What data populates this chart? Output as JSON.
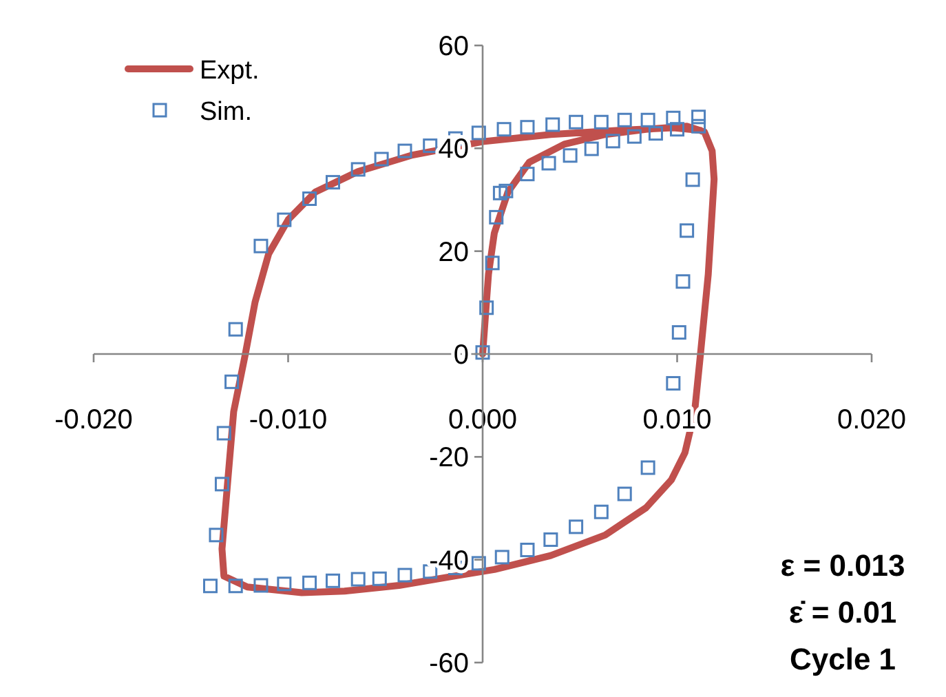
{
  "chart_data": {
    "type": "line",
    "xlim": [
      -0.02,
      0.02
    ],
    "ylim": [
      -60,
      60
    ],
    "xticks": [
      {
        "value": -0.02,
        "label": "-0.020"
      },
      {
        "value": -0.01,
        "label": "-0.010"
      },
      {
        "value": 0,
        "label": "0.000"
      },
      {
        "value": 0.01,
        "label": "0.010"
      },
      {
        "value": 0.02,
        "label": "0.020"
      }
    ],
    "yticks": [
      -60,
      -40,
      -20,
      0,
      20,
      40,
      60
    ],
    "grid": false,
    "legend": "top left",
    "annotations": [
      "ε = 0.013",
      "ε̇ = 0.01",
      "Cycle 1"
    ],
    "series": [
      {
        "name": "Expt.",
        "color": "#c0504d",
        "marker": "none",
        "line_style": "solid",
        "x": [
          0,
          0.0003,
          0.0006,
          0.0013,
          0.0024,
          0.0042,
          0.0063,
          0.0084,
          0.0105,
          0.0114,
          0.0118,
          0.0119,
          0.0116,
          0.0112,
          0.0109,
          0.0104,
          0.0097,
          0.0084,
          0.0063,
          0.0035,
          0.0006,
          -0.0015,
          -0.0043,
          -0.0071,
          -0.0093,
          -0.0121,
          -0.0133,
          -0.0134,
          -0.0131,
          -0.0128,
          -0.0122,
          -0.0117,
          -0.011,
          -0.01,
          -0.0086,
          -0.0064,
          -0.0036,
          0,
          0.0035,
          0.007,
          0.0098,
          0.0112
        ],
        "values": [
          0,
          15.5,
          23.5,
          31.5,
          37.3,
          40.8,
          42.7,
          43.7,
          44.3,
          43.2,
          39.5,
          34,
          15.5,
          0,
          -11.2,
          -19.2,
          -24.5,
          -29.9,
          -35.2,
          -39.2,
          -41.9,
          -43.2,
          -45,
          -46.1,
          -46.4,
          -45.3,
          -43.2,
          -37.9,
          -24.5,
          -11.2,
          0,
          10.1,
          19.5,
          26.1,
          31.5,
          35.5,
          38.7,
          41.3,
          42.7,
          43.5,
          44,
          43.5
        ]
      },
      {
        "name": "Sim.",
        "type": "scatter",
        "color": "#4f81bd",
        "marker": "square",
        "x": [
          0,
          0.0002,
          0.0005,
          0.0007,
          0.0009,
          0.0012,
          0.0023,
          0.0034,
          0.0045,
          0.0056,
          0.0067,
          0.0078,
          0.0089,
          0.01,
          0.0111,
          0.0111,
          0.0108,
          0.0105,
          0.0103,
          0.0101,
          0.0098,
          0.0085,
          0.0073,
          0.0061,
          0.0048,
          0.0035,
          0.0023,
          0.001,
          -0.0002,
          -0.0014,
          -0.0027,
          -0.004,
          -0.0053,
          -0.0064,
          -0.0077,
          -0.0089,
          -0.0102,
          -0.0114,
          -0.0127,
          -0.014,
          -0.0137,
          -0.0134,
          -0.0133,
          -0.0129,
          -0.0127,
          -0.0114,
          -0.0102,
          -0.0089,
          -0.0077,
          -0.0064,
          -0.0052,
          -0.004,
          -0.0027,
          -0.0014,
          -0.0002,
          0.0011,
          0.0023,
          0.0036,
          0.0048,
          0.0061,
          0.0073,
          0.0085,
          0.0098
        ],
        "values": [
          0.3,
          9,
          17.7,
          26.6,
          31.3,
          31.7,
          35,
          37.1,
          38.6,
          39.9,
          41.4,
          42.3,
          42.9,
          43.7,
          44.3,
          46.1,
          33.9,
          24,
          14.1,
          4.2,
          -5.7,
          -22.1,
          -27.2,
          -30.7,
          -33.6,
          -36.1,
          -38.1,
          -39.5,
          -40.7,
          -41.6,
          -42.3,
          -43,
          -43.7,
          -43.8,
          -44.1,
          -44.5,
          -44.7,
          -45,
          -45.1,
          -45.1,
          -35.2,
          -25.3,
          -15.4,
          -5.4,
          4.8,
          21,
          26.1,
          30.2,
          33.4,
          35.9,
          37.9,
          39.5,
          40.5,
          41.9,
          43,
          43.7,
          44.1,
          44.6,
          45.1,
          45.1,
          45.5,
          45.5,
          45.9
        ]
      }
    ]
  }
}
